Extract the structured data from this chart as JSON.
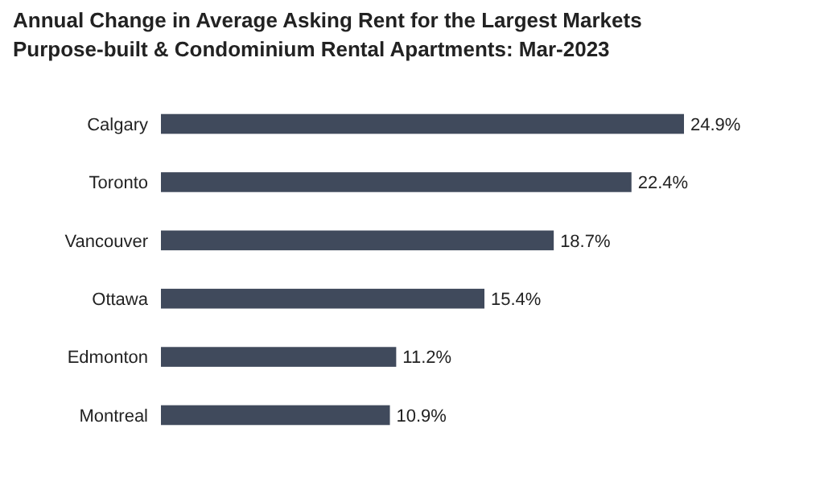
{
  "chart_data": {
    "type": "bar",
    "orientation": "horizontal",
    "title": "Annual Change in Average Asking Rent for the Largest Markets",
    "subtitle": "Purpose-built & Condominium Rental Apartments: Mar-2023",
    "categories": [
      "Calgary",
      "Toronto",
      "Vancouver",
      "Ottawa",
      "Edmonton",
      "Montreal"
    ],
    "values": [
      24.9,
      22.4,
      18.7,
      15.4,
      11.2,
      10.9
    ],
    "value_labels": [
      "24.9%",
      "22.4%",
      "18.7%",
      "15.4%",
      "11.2%",
      "10.9%"
    ],
    "color": "#404a5c"
  }
}
